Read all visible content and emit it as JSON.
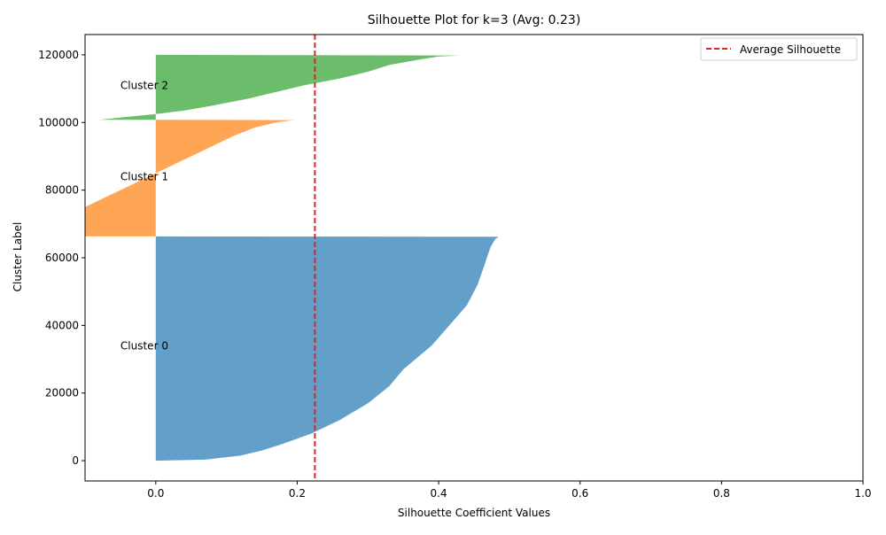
{
  "chart_data": {
    "type": "area",
    "title": "Silhouette Plot for k=3 (Avg: 0.23)",
    "xlabel": "Silhouette Coefficient Values",
    "ylabel": "Cluster Label",
    "xlim": [
      -0.1,
      1.0
    ],
    "ylim": [
      -6000,
      126000
    ],
    "x_ticks": [
      0.0,
      0.2,
      0.4,
      0.6,
      0.8,
      1.0
    ],
    "x_tick_labels": [
      "0.0",
      "0.2",
      "0.4",
      "0.6",
      "0.8",
      "1.0"
    ],
    "y_ticks": [
      0,
      20000,
      40000,
      60000,
      80000,
      100000,
      120000
    ],
    "y_tick_labels": [
      "0",
      "20000",
      "40000",
      "60000",
      "80000",
      "100000",
      "120000"
    ],
    "grid": false,
    "legend_position": "top-right",
    "average_silhouette": {
      "value": 0.225,
      "label": "Average Silhouette",
      "color": "#d62728",
      "style": "dashed"
    },
    "clusters": [
      {
        "label": "Cluster 0",
        "color": "#1f77b4",
        "label_x": -0.05,
        "label_y": 34000,
        "profile": [
          {
            "y": 0,
            "x": 0.0
          },
          {
            "y": 300,
            "x": 0.07
          },
          {
            "y": 1500,
            "x": 0.12
          },
          {
            "y": 3000,
            "x": 0.15
          },
          {
            "y": 5000,
            "x": 0.18
          },
          {
            "y": 8000,
            "x": 0.22
          },
          {
            "y": 12000,
            "x": 0.26
          },
          {
            "y": 17000,
            "x": 0.3
          },
          {
            "y": 22000,
            "x": 0.33
          },
          {
            "y": 27000,
            "x": 0.35
          },
          {
            "y": 34000,
            "x": 0.39
          },
          {
            "y": 40000,
            "x": 0.415
          },
          {
            "y": 46000,
            "x": 0.44
          },
          {
            "y": 52000,
            "x": 0.455
          },
          {
            "y": 58000,
            "x": 0.465
          },
          {
            "y": 63000,
            "x": 0.473
          },
          {
            "y": 65500,
            "x": 0.48
          },
          {
            "y": 66200,
            "x": 0.485
          },
          {
            "y": 66300,
            "x": 0.0
          }
        ]
      },
      {
        "label": "Cluster 1",
        "color": "#ff7f0e",
        "label_x": -0.05,
        "label_y": 84000,
        "profile": [
          {
            "y": 66300,
            "x": -0.1
          },
          {
            "y": 75000,
            "x": -0.1
          },
          {
            "y": 78000,
            "x": -0.07
          },
          {
            "y": 80000,
            "x": -0.05
          },
          {
            "y": 82000,
            "x": -0.03
          },
          {
            "y": 84000,
            "x": -0.01
          },
          {
            "y": 85000,
            "x": 0.0
          },
          {
            "y": 87000,
            "x": 0.02
          },
          {
            "y": 90000,
            "x": 0.05
          },
          {
            "y": 93000,
            "x": 0.08
          },
          {
            "y": 96000,
            "x": 0.11
          },
          {
            "y": 98500,
            "x": 0.14
          },
          {
            "y": 100000,
            "x": 0.17
          },
          {
            "y": 100700,
            "x": 0.195
          },
          {
            "y": 100800,
            "x": 0.0
          }
        ]
      },
      {
        "label": "Cluster 2",
        "color": "#2ca02c",
        "label_x": -0.05,
        "label_y": 111000,
        "profile": [
          {
            "y": 100800,
            "x": -0.08
          },
          {
            "y": 102500,
            "x": 0.0
          },
          {
            "y": 103500,
            "x": 0.04
          },
          {
            "y": 105000,
            "x": 0.08
          },
          {
            "y": 107000,
            "x": 0.13
          },
          {
            "y": 109000,
            "x": 0.17
          },
          {
            "y": 111000,
            "x": 0.21
          },
          {
            "y": 113000,
            "x": 0.26
          },
          {
            "y": 115000,
            "x": 0.3
          },
          {
            "y": 117000,
            "x": 0.33
          },
          {
            "y": 118500,
            "x": 0.37
          },
          {
            "y": 119500,
            "x": 0.4
          },
          {
            "y": 119800,
            "x": 0.43
          },
          {
            "y": 120000,
            "x": 0.0
          }
        ]
      }
    ]
  }
}
